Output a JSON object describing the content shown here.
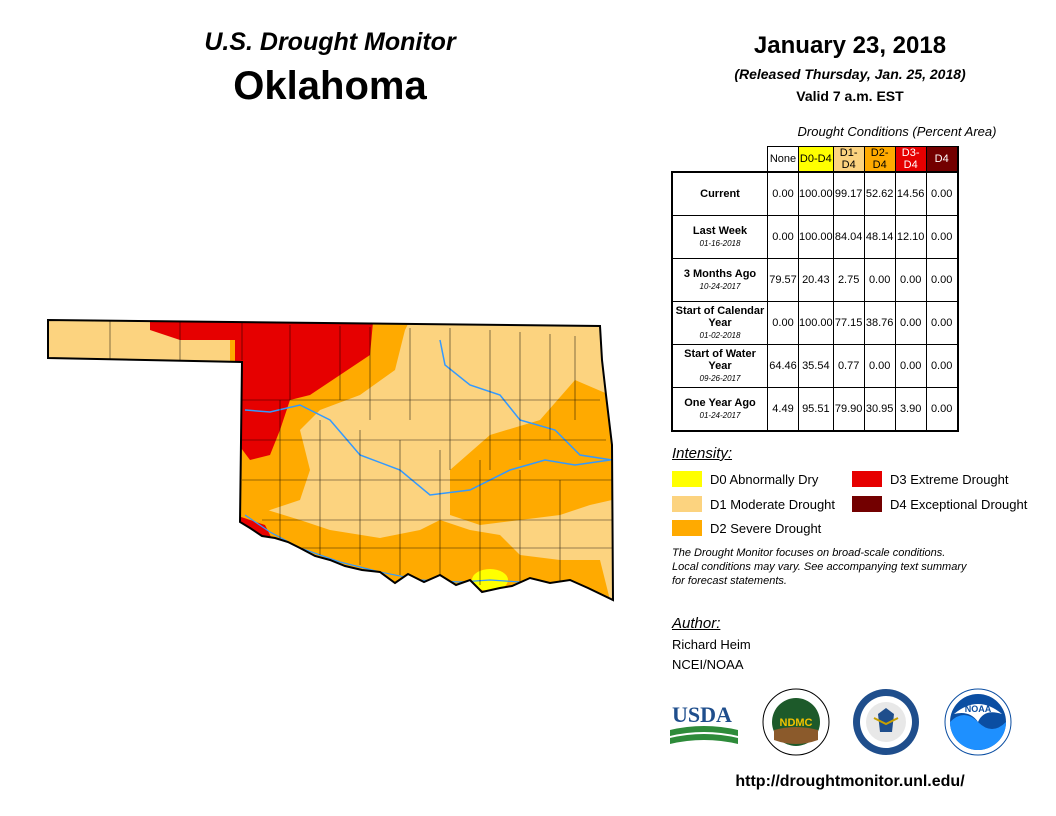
{
  "header": {
    "title": "U.S. Drought Monitor",
    "state": "Oklahoma",
    "date": "January 23, 2018",
    "released": "(Released Thursday, Jan. 25, 2018)",
    "valid": "Valid 7 a.m. EST"
  },
  "table": {
    "caption": "Drought Conditions (Percent Area)",
    "columns": [
      {
        "label": "None",
        "color": "#ffffff"
      },
      {
        "label": "D0-D4",
        "color": "#ffff00"
      },
      {
        "label": "D1-D4",
        "color": "#fcd37f"
      },
      {
        "label": "D2-D4",
        "color": "#ffaa00"
      },
      {
        "label": "D3-D4",
        "color": "#e60000"
      },
      {
        "label": "D4",
        "color": "#730000"
      }
    ],
    "rows": [
      {
        "label": "Current",
        "date": "",
        "values": [
          "0.00",
          "100.00",
          "99.17",
          "52.62",
          "14.56",
          "0.00"
        ]
      },
      {
        "label": "Last Week",
        "date": "01-16-2018",
        "values": [
          "0.00",
          "100.00",
          "84.04",
          "48.14",
          "12.10",
          "0.00"
        ]
      },
      {
        "label": "3 Months Ago",
        "date": "10-24-2017",
        "values": [
          "79.57",
          "20.43",
          "2.75",
          "0.00",
          "0.00",
          "0.00"
        ]
      },
      {
        "label": "Start of Calendar Year",
        "date": "01-02-2018",
        "values": [
          "0.00",
          "100.00",
          "77.15",
          "38.76",
          "0.00",
          "0.00"
        ]
      },
      {
        "label": "Start of Water Year",
        "date": "09-26-2017",
        "values": [
          "64.46",
          "35.54",
          "0.77",
          "0.00",
          "0.00",
          "0.00"
        ]
      },
      {
        "label": "One Year Ago",
        "date": "01-24-2017",
        "values": [
          "4.49",
          "95.51",
          "79.90",
          "30.95",
          "3.90",
          "0.00"
        ]
      }
    ]
  },
  "legend": {
    "heading": "Intensity:",
    "items": [
      {
        "label": "D0 Abnormally Dry",
        "color": "#ffff00"
      },
      {
        "label": "D1 Moderate Drought",
        "color": "#fcd37f"
      },
      {
        "label": "D2 Severe Drought",
        "color": "#ffaa00"
      },
      {
        "label": "D3 Extreme Drought",
        "color": "#e60000"
      },
      {
        "label": "D4 Exceptional Drought",
        "color": "#730000"
      }
    ]
  },
  "notes": {
    "line1": "The Drought Monitor focuses on broad-scale conditions.",
    "line2": "Local conditions may vary. See accompanying text summary",
    "line3": "for forecast statements."
  },
  "author": {
    "heading": "Author:",
    "name": "Richard Heim",
    "org": "NCEI/NOAA"
  },
  "logos": {
    "usda": "USDA",
    "ndmc": "NDMC",
    "noaa": "NOAA"
  },
  "footer": {
    "url": "http://droughtmonitor.unl.edu/"
  },
  "colors": {
    "d1": "#fcd37f",
    "d2": "#ffaa00",
    "d3": "#e60000",
    "d0": "#ffff00",
    "river": "#3399ff"
  }
}
